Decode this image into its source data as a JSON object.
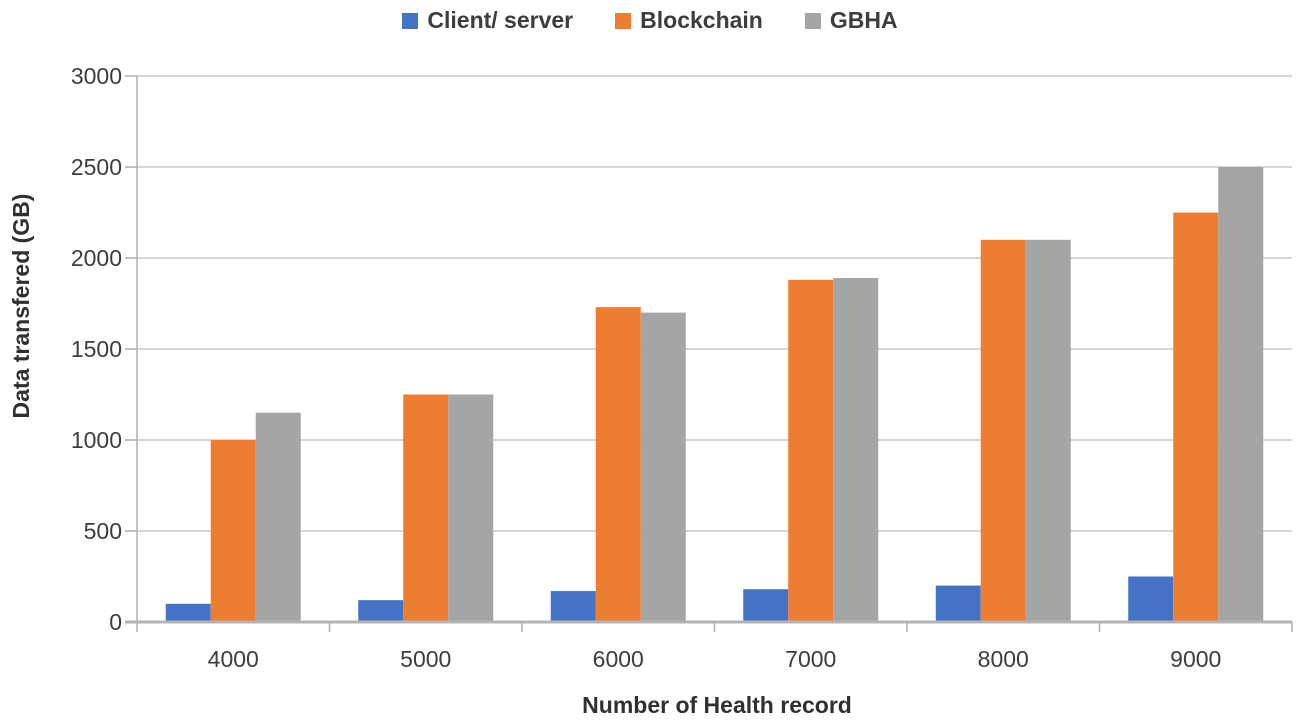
{
  "chart_data": {
    "type": "bar",
    "title": "",
    "xlabel": "Number of Health record",
    "ylabel": "Data transfered (GB)",
    "categories": [
      "4000",
      "5000",
      "6000",
      "7000",
      "8000",
      "9000"
    ],
    "series": [
      {
        "name": "Client/ server",
        "color": "#4472C4",
        "values": [
          100,
          120,
          170,
          180,
          200,
          250
        ]
      },
      {
        "name": "Blockchain",
        "color": "#ED7D31",
        "values": [
          1000,
          1250,
          1730,
          1880,
          2100,
          2250
        ]
      },
      {
        "name": "GBHA",
        "color": "#A5A5A5",
        "values": [
          1150,
          1250,
          1700,
          1890,
          2100,
          2500
        ]
      }
    ],
    "ylim": [
      0,
      3000
    ],
    "yticks": [
      0,
      500,
      1000,
      1500,
      2000,
      2500,
      3000
    ],
    "grid": "horizontal",
    "legend_position": "top-center",
    "axis_color": "#b3b3b3",
    "gridline_color": "#c9c9c9",
    "text_color": "#3d3d3d"
  }
}
